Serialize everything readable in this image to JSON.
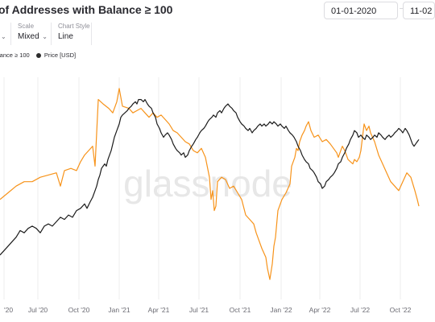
{
  "header": {
    "title": "of Addresses with Balance ≥ 100",
    "date_start": "01-01-2020",
    "date_end": "11-02"
  },
  "controls": {
    "scale_label": "Scale",
    "scale_value": "Mixed",
    "chart_style_label": "Chart Style",
    "chart_style_value": "Line"
  },
  "watermark": "glassnode",
  "colors": {
    "orange": "#f7931a",
    "black": "#1c1c1c",
    "grid": "#eeeeee"
  },
  "chart_data": {
    "type": "line",
    "x_ticks": [
      "'20",
      "Jul '20",
      "Oct '20",
      "Jan '21",
      "Apr '21",
      "Jul '21",
      "Oct '21",
      "Jan '22",
      "Apr '22",
      "Jul '22",
      "Oct '22"
    ],
    "y_left": [
      0,
      100
    ],
    "y_right": [
      0,
      100
    ],
    "legend": [
      "lance ≥ 100",
      "Price [USD]"
    ],
    "series": [
      {
        "name": "lance ≥ 100",
        "color": "#f7931a",
        "points": [
          [
            0,
            55
          ],
          [
            10,
            52
          ],
          [
            20,
            49
          ],
          [
            30,
            47
          ],
          [
            40,
            47
          ],
          [
            50,
            45
          ],
          [
            60,
            44
          ],
          [
            70,
            43
          ],
          [
            75,
            49
          ],
          [
            80,
            42
          ],
          [
            88,
            41
          ],
          [
            95,
            42
          ],
          [
            100,
            38
          ],
          [
            105,
            35
          ],
          [
            110,
            33
          ],
          [
            115,
            31
          ],
          [
            118,
            40
          ],
          [
            122,
            10
          ],
          [
            128,
            12
          ],
          [
            135,
            14
          ],
          [
            140,
            16
          ],
          [
            145,
            11
          ],
          [
            148,
            5
          ],
          [
            152,
            13
          ],
          [
            160,
            14
          ],
          [
            165,
            16
          ],
          [
            170,
            15
          ],
          [
            175,
            14
          ],
          [
            180,
            16
          ],
          [
            185,
            18
          ],
          [
            190,
            16
          ],
          [
            195,
            18
          ],
          [
            200,
            17
          ],
          [
            205,
            19
          ],
          [
            210,
            21
          ],
          [
            215,
            24
          ],
          [
            220,
            25
          ],
          [
            225,
            27
          ],
          [
            230,
            29
          ],
          [
            235,
            30
          ],
          [
            240,
            33
          ],
          [
            245,
            34
          ],
          [
            250,
            32
          ],
          [
            255,
            36
          ],
          [
            260,
            45
          ],
          [
            262,
            55
          ],
          [
            264,
            51
          ],
          [
            266,
            60
          ],
          [
            268,
            58
          ],
          [
            270,
            47
          ],
          [
            275,
            45
          ],
          [
            280,
            46
          ],
          [
            285,
            50
          ],
          [
            290,
            49
          ],
          [
            295,
            52
          ],
          [
            300,
            55
          ],
          [
            305,
            62
          ],
          [
            310,
            64
          ],
          [
            315,
            66
          ],
          [
            318,
            70
          ],
          [
            320,
            72
          ],
          [
            325,
            77
          ],
          [
            330,
            81
          ],
          [
            332,
            86
          ],
          [
            335,
            91
          ],
          [
            338,
            84
          ],
          [
            340,
            76
          ],
          [
            342,
            72
          ],
          [
            345,
            60
          ],
          [
            350,
            55
          ],
          [
            355,
            52
          ],
          [
            360,
            48
          ],
          [
            362,
            40
          ],
          [
            364,
            38
          ],
          [
            366,
            36
          ],
          [
            368,
            32
          ],
          [
            370,
            33
          ],
          [
            372,
            29
          ],
          [
            375,
            26
          ],
          [
            378,
            24
          ],
          [
            380,
            22
          ],
          [
            383,
            20
          ],
          [
            386,
            24
          ],
          [
            390,
            27
          ],
          [
            395,
            26
          ],
          [
            400,
            29
          ],
          [
            405,
            28
          ],
          [
            410,
            30
          ],
          [
            414,
            32
          ],
          [
            418,
            34
          ],
          [
            420,
            36
          ],
          [
            422,
            34
          ],
          [
            425,
            31
          ],
          [
            428,
            33
          ],
          [
            430,
            35
          ],
          [
            432,
            37
          ],
          [
            435,
            38
          ],
          [
            438,
            39
          ],
          [
            440,
            37
          ],
          [
            443,
            38
          ],
          [
            446,
            36
          ],
          [
            448,
            33
          ],
          [
            450,
            27
          ],
          [
            452,
            21
          ],
          [
            455,
            24
          ],
          [
            458,
            22
          ],
          [
            460,
            25
          ],
          [
            465,
            29
          ],
          [
            470,
            35
          ],
          [
            475,
            39
          ],
          [
            480,
            43
          ],
          [
            485,
            47
          ],
          [
            490,
            49
          ],
          [
            495,
            51
          ],
          [
            500,
            47
          ],
          [
            505,
            43
          ],
          [
            510,
            45
          ],
          [
            515,
            51
          ],
          [
            518,
            55
          ],
          [
            520,
            58
          ]
        ]
      },
      {
        "name": "Price [USD]",
        "color": "#1c1c1c",
        "points": [
          [
            0,
            80
          ],
          [
            5,
            78
          ],
          [
            10,
            76
          ],
          [
            15,
            74
          ],
          [
            20,
            72
          ],
          [
            25,
            69
          ],
          [
            30,
            70
          ],
          [
            35,
            68
          ],
          [
            40,
            67
          ],
          [
            45,
            68
          ],
          [
            50,
            70
          ],
          [
            55,
            67
          ],
          [
            60,
            66
          ],
          [
            65,
            67
          ],
          [
            70,
            65
          ],
          [
            75,
            63
          ],
          [
            80,
            64
          ],
          [
            85,
            62
          ],
          [
            90,
            63
          ],
          [
            95,
            60
          ],
          [
            100,
            59
          ],
          [
            105,
            57
          ],
          [
            108,
            59
          ],
          [
            112,
            56
          ],
          [
            115,
            54
          ],
          [
            118,
            51
          ],
          [
            120,
            49
          ],
          [
            122,
            46
          ],
          [
            124,
            44
          ],
          [
            126,
            41
          ],
          [
            128,
            40
          ],
          [
            130,
            39
          ],
          [
            132,
            40
          ],
          [
            134,
            37
          ],
          [
            136,
            35
          ],
          [
            138,
            33
          ],
          [
            140,
            30
          ],
          [
            142,
            27
          ],
          [
            145,
            24
          ],
          [
            148,
            21
          ],
          [
            150,
            18
          ],
          [
            152,
            17
          ],
          [
            155,
            16
          ],
          [
            158,
            15
          ],
          [
            160,
            14
          ],
          [
            163,
            13
          ],
          [
            165,
            12
          ],
          [
            168,
            11
          ],
          [
            170,
            12
          ],
          [
            172,
            10
          ],
          [
            175,
            10
          ],
          [
            178,
            11
          ],
          [
            180,
            10
          ],
          [
            183,
            12
          ],
          [
            185,
            13
          ],
          [
            188,
            14
          ],
          [
            190,
            16
          ],
          [
            193,
            18
          ],
          [
            195,
            21
          ],
          [
            198,
            23
          ],
          [
            200,
            25
          ],
          [
            203,
            27
          ],
          [
            205,
            26
          ],
          [
            208,
            25
          ],
          [
            210,
            26
          ],
          [
            213,
            28
          ],
          [
            215,
            30
          ],
          [
            218,
            32
          ],
          [
            220,
            33
          ],
          [
            223,
            34
          ],
          [
            225,
            35
          ],
          [
            228,
            34
          ],
          [
            230,
            36
          ],
          [
            233,
            35
          ],
          [
            235,
            33
          ],
          [
            238,
            31
          ],
          [
            240,
            30
          ],
          [
            243,
            28
          ],
          [
            245,
            27
          ],
          [
            248,
            25
          ],
          [
            250,
            24
          ],
          [
            253,
            23
          ],
          [
            255,
            22
          ],
          [
            258,
            20
          ],
          [
            260,
            19
          ],
          [
            263,
            18
          ],
          [
            265,
            17
          ],
          [
            268,
            18
          ],
          [
            270,
            16
          ],
          [
            273,
            15
          ],
          [
            275,
            16
          ],
          [
            278,
            14
          ],
          [
            280,
            13
          ],
          [
            283,
            12
          ],
          [
            285,
            13
          ],
          [
            288,
            14
          ],
          [
            290,
            15
          ],
          [
            293,
            16
          ],
          [
            295,
            18
          ],
          [
            298,
            20
          ],
          [
            300,
            21
          ],
          [
            303,
            22
          ],
          [
            305,
            23
          ],
          [
            308,
            24
          ],
          [
            310,
            23
          ],
          [
            313,
            25
          ],
          [
            315,
            24
          ],
          [
            318,
            23
          ],
          [
            320,
            22
          ],
          [
            323,
            21
          ],
          [
            325,
            22
          ],
          [
            328,
            21
          ],
          [
            330,
            22
          ],
          [
            333,
            21
          ],
          [
            335,
            20
          ],
          [
            338,
            21
          ],
          [
            340,
            20
          ],
          [
            343,
            21
          ],
          [
            345,
            22
          ],
          [
            348,
            21
          ],
          [
            350,
            22
          ],
          [
            353,
            23
          ],
          [
            355,
            22
          ],
          [
            358,
            24
          ],
          [
            360,
            25
          ],
          [
            363,
            26
          ],
          [
            365,
            27
          ],
          [
            368,
            29
          ],
          [
            370,
            31
          ],
          [
            373,
            33
          ],
          [
            375,
            35
          ],
          [
            378,
            37
          ],
          [
            380,
            38
          ],
          [
            383,
            39
          ],
          [
            385,
            41
          ],
          [
            388,
            42
          ],
          [
            390,
            43
          ],
          [
            393,
            45
          ],
          [
            395,
            47
          ],
          [
            398,
            48
          ],
          [
            400,
            50
          ],
          [
            403,
            49
          ],
          [
            405,
            47
          ],
          [
            408,
            46
          ],
          [
            410,
            45
          ],
          [
            413,
            44
          ],
          [
            415,
            43
          ],
          [
            418,
            41
          ],
          [
            420,
            39
          ],
          [
            423,
            38
          ],
          [
            425,
            36
          ],
          [
            428,
            34
          ],
          [
            430,
            32
          ],
          [
            433,
            30
          ],
          [
            435,
            28
          ],
          [
            438,
            26
          ],
          [
            440,
            24
          ],
          [
            443,
            25
          ],
          [
            445,
            27
          ],
          [
            448,
            26
          ],
          [
            450,
            27
          ],
          [
            453,
            28
          ],
          [
            455,
            26
          ],
          [
            458,
            27
          ],
          [
            460,
            28
          ],
          [
            463,
            27
          ],
          [
            465,
            26
          ],
          [
            468,
            27
          ],
          [
            470,
            25
          ],
          [
            473,
            26
          ],
          [
            475,
            27
          ],
          [
            478,
            28
          ],
          [
            480,
            27
          ],
          [
            483,
            26
          ],
          [
            485,
            27
          ],
          [
            488,
            26
          ],
          [
            490,
            25
          ],
          [
            493,
            24
          ],
          [
            495,
            23
          ],
          [
            498,
            24
          ],
          [
            500,
            25
          ],
          [
            503,
            23
          ],
          [
            505,
            24
          ],
          [
            508,
            26
          ],
          [
            510,
            28
          ],
          [
            512,
            30
          ],
          [
            514,
            31
          ],
          [
            516,
            30
          ],
          [
            518,
            29
          ],
          [
            520,
            28
          ]
        ]
      }
    ]
  }
}
